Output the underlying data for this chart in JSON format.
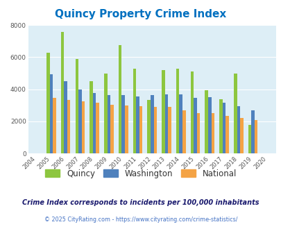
{
  "title": "Quincy Property Crime Index",
  "years": [
    2004,
    2005,
    2006,
    2007,
    2008,
    2009,
    2010,
    2011,
    2012,
    2013,
    2014,
    2015,
    2016,
    2017,
    2018,
    2019,
    2020
  ],
  "quincy": [
    null,
    6300,
    7600,
    5900,
    4500,
    5000,
    6750,
    5300,
    3350,
    5200,
    5300,
    5100,
    3950,
    3400,
    5000,
    1800,
    null
  ],
  "washington": [
    null,
    4950,
    4500,
    4000,
    3750,
    3650,
    3650,
    3550,
    3650,
    3700,
    3700,
    3450,
    3500,
    3150,
    2950,
    2700,
    null
  ],
  "national": [
    null,
    3450,
    3350,
    3250,
    3150,
    3050,
    3000,
    2950,
    2900,
    2900,
    2700,
    2500,
    2500,
    2350,
    2200,
    2100,
    null
  ],
  "quincy_color": "#8dc63f",
  "washington_color": "#4f81bd",
  "national_color": "#f4a345",
  "bg_color": "#ddeef6",
  "ylim": [
    0,
    8000
  ],
  "yticks": [
    0,
    2000,
    4000,
    6000,
    8000
  ],
  "subtitle": "Crime Index corresponds to incidents per 100,000 inhabitants",
  "footer": "© 2025 CityRating.com - https://www.cityrating.com/crime-statistics/",
  "title_color": "#0070c0",
  "subtitle_color": "#1a1a6e",
  "footer_color": "#4472c4"
}
